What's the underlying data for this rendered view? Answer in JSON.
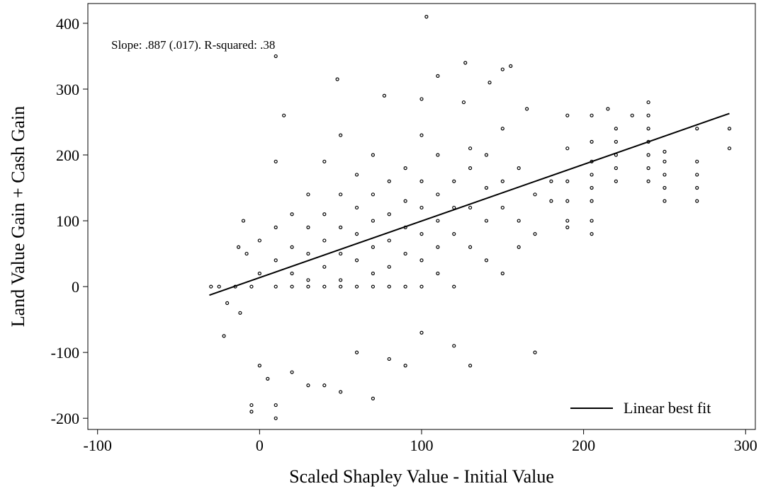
{
  "chart_data": {
    "type": "scatter",
    "annotation": "Slope: .887 (.017). R-squared: .38",
    "x_label": "Scaled Shapley Value - Initial Value",
    "y_label": "Land Value Gain + Cash Gain",
    "xlim": [
      -106,
      306
    ],
    "ylim": [
      -217,
      430
    ],
    "xticks": [
      -100,
      0,
      100,
      200,
      300
    ],
    "yticks": [
      -200,
      -100,
      0,
      100,
      200,
      300,
      400
    ],
    "legend": "lower right",
    "series": [
      {
        "type": "scatter",
        "color": "#000000",
        "x": [
          103,
          10,
          127,
          155,
          150,
          110,
          48,
          142,
          77,
          100,
          126,
          240,
          15,
          165,
          215,
          230,
          190,
          205,
          290,
          290,
          270,
          270,
          270,
          270,
          270,
          250,
          250,
          250,
          250,
          250,
          240,
          240,
          240,
          240,
          240,
          240,
          220,
          220,
          220,
          220,
          220,
          205,
          205,
          205,
          205,
          205,
          205,
          205,
          190,
          190,
          190,
          190,
          190,
          180,
          180,
          170,
          170,
          170,
          160,
          160,
          160,
          150,
          150,
          150,
          150,
          140,
          140,
          140,
          140,
          130,
          130,
          130,
          130,
          130,
          120,
          120,
          120,
          120,
          120,
          110,
          110,
          110,
          110,
          110,
          100,
          100,
          100,
          100,
          100,
          100,
          100,
          90,
          90,
          90,
          90,
          90,
          90,
          80,
          80,
          80,
          80,
          80,
          80,
          70,
          70,
          70,
          70,
          70,
          70,
          70,
          60,
          60,
          60,
          60,
          60,
          60,
          50,
          50,
          50,
          50,
          50,
          50,
          50,
          40,
          40,
          40,
          40,
          40,
          40,
          30,
          30,
          30,
          30,
          30,
          30,
          20,
          20,
          20,
          20,
          20,
          10,
          10,
          10,
          10,
          10,
          10,
          5,
          0,
          0,
          0,
          -5,
          -5,
          -5,
          -10,
          -12,
          -15,
          -20,
          -22,
          -25,
          -30,
          -13,
          -8
        ],
        "y": [
          410,
          350,
          340,
          335,
          330,
          320,
          315,
          310,
          290,
          285,
          280,
          280,
          260,
          270,
          270,
          260,
          260,
          260,
          240,
          210,
          240,
          190,
          170,
          150,
          130,
          205,
          190,
          170,
          150,
          130,
          260,
          240,
          220,
          200,
          180,
          160,
          240,
          220,
          200,
          180,
          160,
          220,
          190,
          170,
          150,
          130,
          100,
          80,
          210,
          160,
          130,
          100,
          90,
          160,
          130,
          -100,
          140,
          80,
          180,
          100,
          60,
          240,
          160,
          120,
          20,
          200,
          150,
          100,
          40,
          -120,
          210,
          180,
          120,
          60,
          -90,
          160,
          120,
          80,
          0,
          200,
          140,
          100,
          60,
          20,
          -70,
          230,
          160,
          120,
          80,
          40,
          0,
          -120,
          180,
          130,
          90,
          50,
          0,
          -110,
          160,
          110,
          70,
          30,
          0,
          -170,
          200,
          140,
          100,
          60,
          20,
          0,
          -100,
          170,
          120,
          80,
          40,
          0,
          -160,
          230,
          140,
          90,
          50,
          10,
          0,
          -150,
          190,
          110,
          70,
          30,
          0,
          -150,
          140,
          90,
          50,
          10,
          0,
          -130,
          110,
          60,
          20,
          0,
          -200,
          -180,
          190,
          90,
          40,
          0,
          -140,
          -120,
          70,
          20,
          -180,
          -190,
          0,
          100,
          -40,
          0,
          -25,
          -75,
          0,
          0,
          60,
          50
        ]
      },
      {
        "type": "line",
        "name": "Linear best fit",
        "color": "#000000",
        "x": [
          -31,
          290
        ],
        "y": [
          -13,
          263
        ]
      }
    ]
  }
}
